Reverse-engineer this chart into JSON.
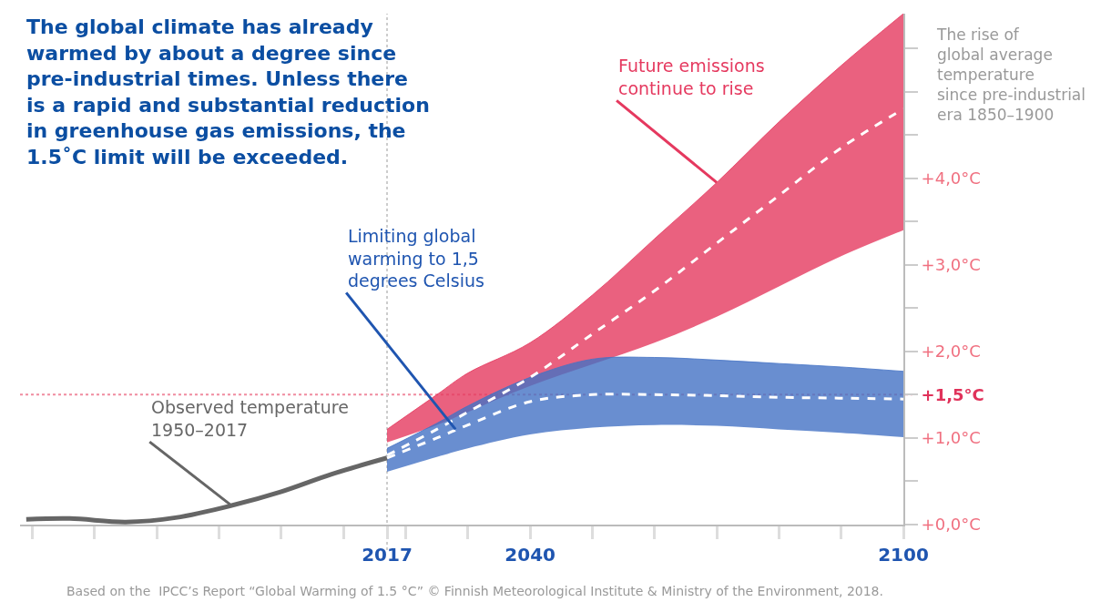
{
  "chart_data": {
    "type": "line",
    "title": "The global climate has already warmed by about a degree since pre-industrial times. Unless there is a rapid and substantial reduction in greenhouse gas emissions, the 1.5˚C limit will be exceeded.",
    "ylabel": "The rise of\nglobal average\ntemperature\nsince pre-industrial\nera 1850–1900",
    "xlim": [
      1958,
      2100
    ],
    "xticks": [
      {
        "value": 1960,
        "label": null
      },
      {
        "value": 1970,
        "label": null
      },
      {
        "value": 1980,
        "label": null
      },
      {
        "value": 1990,
        "label": null
      },
      {
        "value": 2000,
        "label": null
      },
      {
        "value": 2010,
        "label": null
      },
      2017,
      {
        "value": 2020,
        "label": null
      },
      {
        "value": 2030,
        "label": null
      },
      2040,
      {
        "value": 2050,
        "label": null
      },
      {
        "value": 2060,
        "label": null
      },
      {
        "value": 2070,
        "label": null
      },
      {
        "value": 2080,
        "label": null
      },
      {
        "value": 2090,
        "label": null
      },
      2100
    ],
    "ylim": [
      0,
      5.9
    ],
    "yticks": [
      {
        "value": 0,
        "label": "+0,0°C"
      },
      {
        "value": 0.5,
        "label": null
      },
      {
        "value": 1,
        "label": "+1,0°C"
      },
      {
        "value": 1.5,
        "label": "+1,5°C"
      },
      {
        "value": 2,
        "label": "+2,0°C"
      },
      {
        "value": 2.5,
        "label": null
      },
      {
        "value": 3,
        "label": "+3,0°C"
      },
      {
        "value": 3.5,
        "label": null
      },
      {
        "value": 4,
        "label": "+4,0°C"
      },
      {
        "value": 4.5,
        "label": null
      },
      {
        "value": 5,
        "label": null
      },
      {
        "value": 5.5,
        "label": null
      }
    ],
    "series": [
      {
        "color": "#666666",
        "line_style": "solid",
        "x": [
          1959,
          1966,
          1975,
          1983,
          1992,
          2000,
          2008,
          2017
        ],
        "values": [
          0.06,
          0.07,
          0.03,
          0.08,
          0.22,
          0.38,
          0.58,
          0.77
        ]
      },
      {
        "color": "#e5395f",
        "x": [
          2017,
          2025,
          2030,
          2040,
          2050,
          2060,
          2070,
          2080,
          2090,
          2100
        ],
        "values": [
          1.1,
          1.5,
          1.75,
          2.1,
          2.65,
          3.3,
          3.95,
          4.65,
          5.3,
          5.9
        ],
        "lower": [
          0.95,
          1.15,
          1.3,
          1.6,
          1.85,
          2.1,
          2.4,
          2.75,
          3.1,
          3.4
        ],
        "upper": [
          1.1,
          1.5,
          1.75,
          2.1,
          2.65,
          3.3,
          3.95,
          4.65,
          5.3,
          5.9
        ]
      },
      {
        "color": "#4472c4",
        "x": [
          2017,
          2025,
          2030,
          2040,
          2050,
          2060,
          2070,
          2080,
          2090,
          2100
        ],
        "values": [
          0.88,
          1.17,
          1.37,
          1.7,
          1.91,
          1.93,
          1.9,
          1.86,
          1.82,
          1.77
        ],
        "lower": [
          0.61,
          0.78,
          0.88,
          1.04,
          1.12,
          1.15,
          1.14,
          1.1,
          1.06,
          1.01
        ],
        "upper": [
          0.88,
          1.17,
          1.37,
          1.7,
          1.91,
          1.93,
          1.9,
          1.86,
          1.82,
          1.77
        ]
      },
      {
        "color": "#ffffff",
        "line_style": "dashed",
        "x": [
          2017,
          2025,
          2030,
          2040,
          2050,
          2060,
          2070,
          2080,
          2090,
          2100
        ],
        "values": [
          0.8,
          1.1,
          1.3,
          1.7,
          2.2,
          2.7,
          3.25,
          3.8,
          4.35,
          4.8
        ]
      },
      {
        "color": "#ffffff",
        "line_style": "dashed",
        "x": [
          2017,
          2025,
          2030,
          2040,
          2050,
          2060,
          2070,
          2080,
          2090,
          2100
        ],
        "values": [
          0.77,
          1.0,
          1.15,
          1.42,
          1.5,
          1.5,
          1.49,
          1.47,
          1.46,
          1.45
        ]
      }
    ],
    "ref_lines": [
      {
        "axis": "y",
        "value": 1.5,
        "color": "#f08ca0",
        "line_style": "dotted"
      },
      {
        "axis": "x",
        "value": 2017,
        "color": "#cccccc",
        "line_style": "dotted"
      }
    ],
    "annotations": [
      {
        "text": "Observed temperature\n1950–2017",
        "x": 1992,
        "y": 0.22
      },
      {
        "text": "Limiting global\nwarming to 1,5\ndegrees Celsius",
        "x": 2028,
        "y": 1.1
      },
      {
        "text": "Future emissions\ncontinue to rise",
        "x": 2070,
        "y": 3.95
      },
      "Based on the  IPCC’s Report “Global Warming of 1.5 °C” © Finnish Meteorological Institute & Ministry of the Environment, 2018."
    ],
    "grid": false
  }
}
